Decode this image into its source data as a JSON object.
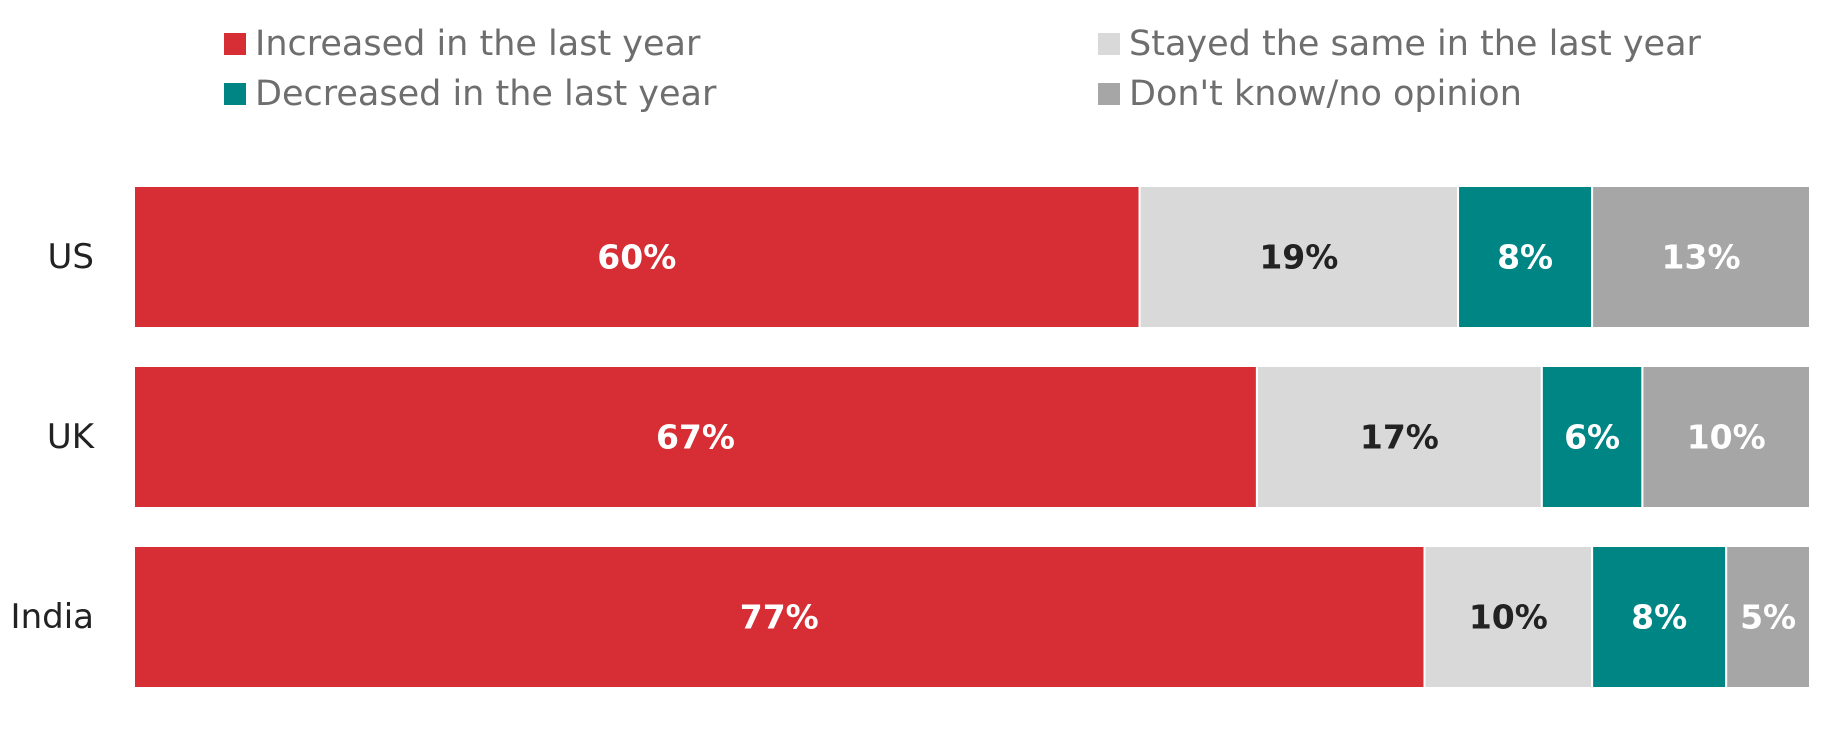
{
  "chart_data": {
    "type": "bar",
    "orientation": "horizontal",
    "stacked": true,
    "categories": [
      "US",
      "UK",
      "India"
    ],
    "series": [
      {
        "name": "Increased in the last year",
        "values": [
          60,
          67,
          77
        ],
        "color": "#d72d34",
        "label_color": "#ffffff"
      },
      {
        "name": "Stayed the same in the last year",
        "values": [
          19,
          17,
          10
        ],
        "color": "#d9d9d9",
        "label_color": "#222222"
      },
      {
        "name": "Decreased in the last year",
        "values": [
          8,
          6,
          8
        ],
        "color": "#008585",
        "label_color": "#ffffff"
      },
      {
        "name": "Don't know/no opinion",
        "values": [
          13,
          10,
          5
        ],
        "color": "#a6a6a6",
        "label_color": "#ffffff"
      }
    ],
    "value_suffix": "%",
    "xlim": [
      0,
      100
    ],
    "grid": false,
    "legend_position": "top"
  }
}
